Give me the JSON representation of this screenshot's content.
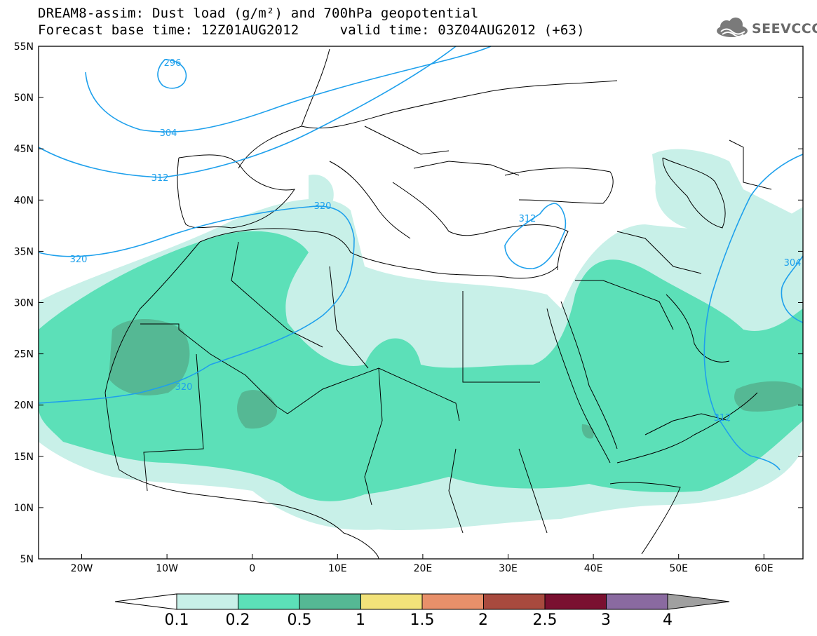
{
  "title": {
    "line1": "DREAM8-assim: Dust load (g/m²) and 700hPa geopotential",
    "line2": "Forecast base time: 12Z01AUG2012     valid time: 03Z04AUG2012 (+63)"
  },
  "logo": {
    "text": "SEEVCCC",
    "icon": "cloud-icon"
  },
  "map": {
    "lat_labels": [
      "55N",
      "50N",
      "45N",
      "40N",
      "35N",
      "30N",
      "25N",
      "20N",
      "15N",
      "10N",
      "5N"
    ],
    "lon_labels": [
      "20W",
      "10W",
      "0",
      "10E",
      "20E",
      "30E",
      "40E",
      "50E",
      "60E"
    ],
    "contour_labels": [
      "296",
      "304",
      "312",
      "320",
      "320",
      "312",
      "312",
      "304",
      "320"
    ]
  },
  "colorbar": {
    "levels": [
      "0.1",
      "0.2",
      "0.5",
      "1",
      "1.5",
      "2",
      "2.5",
      "3",
      "4"
    ],
    "colors": [
      "#c8f0e8",
      "#5ce0b8",
      "#55b894",
      "#f2e27a",
      "#e8906a",
      "#a84a3e",
      "#7a1030",
      "#8a6aa0",
      "#a0a0a0"
    ]
  }
}
